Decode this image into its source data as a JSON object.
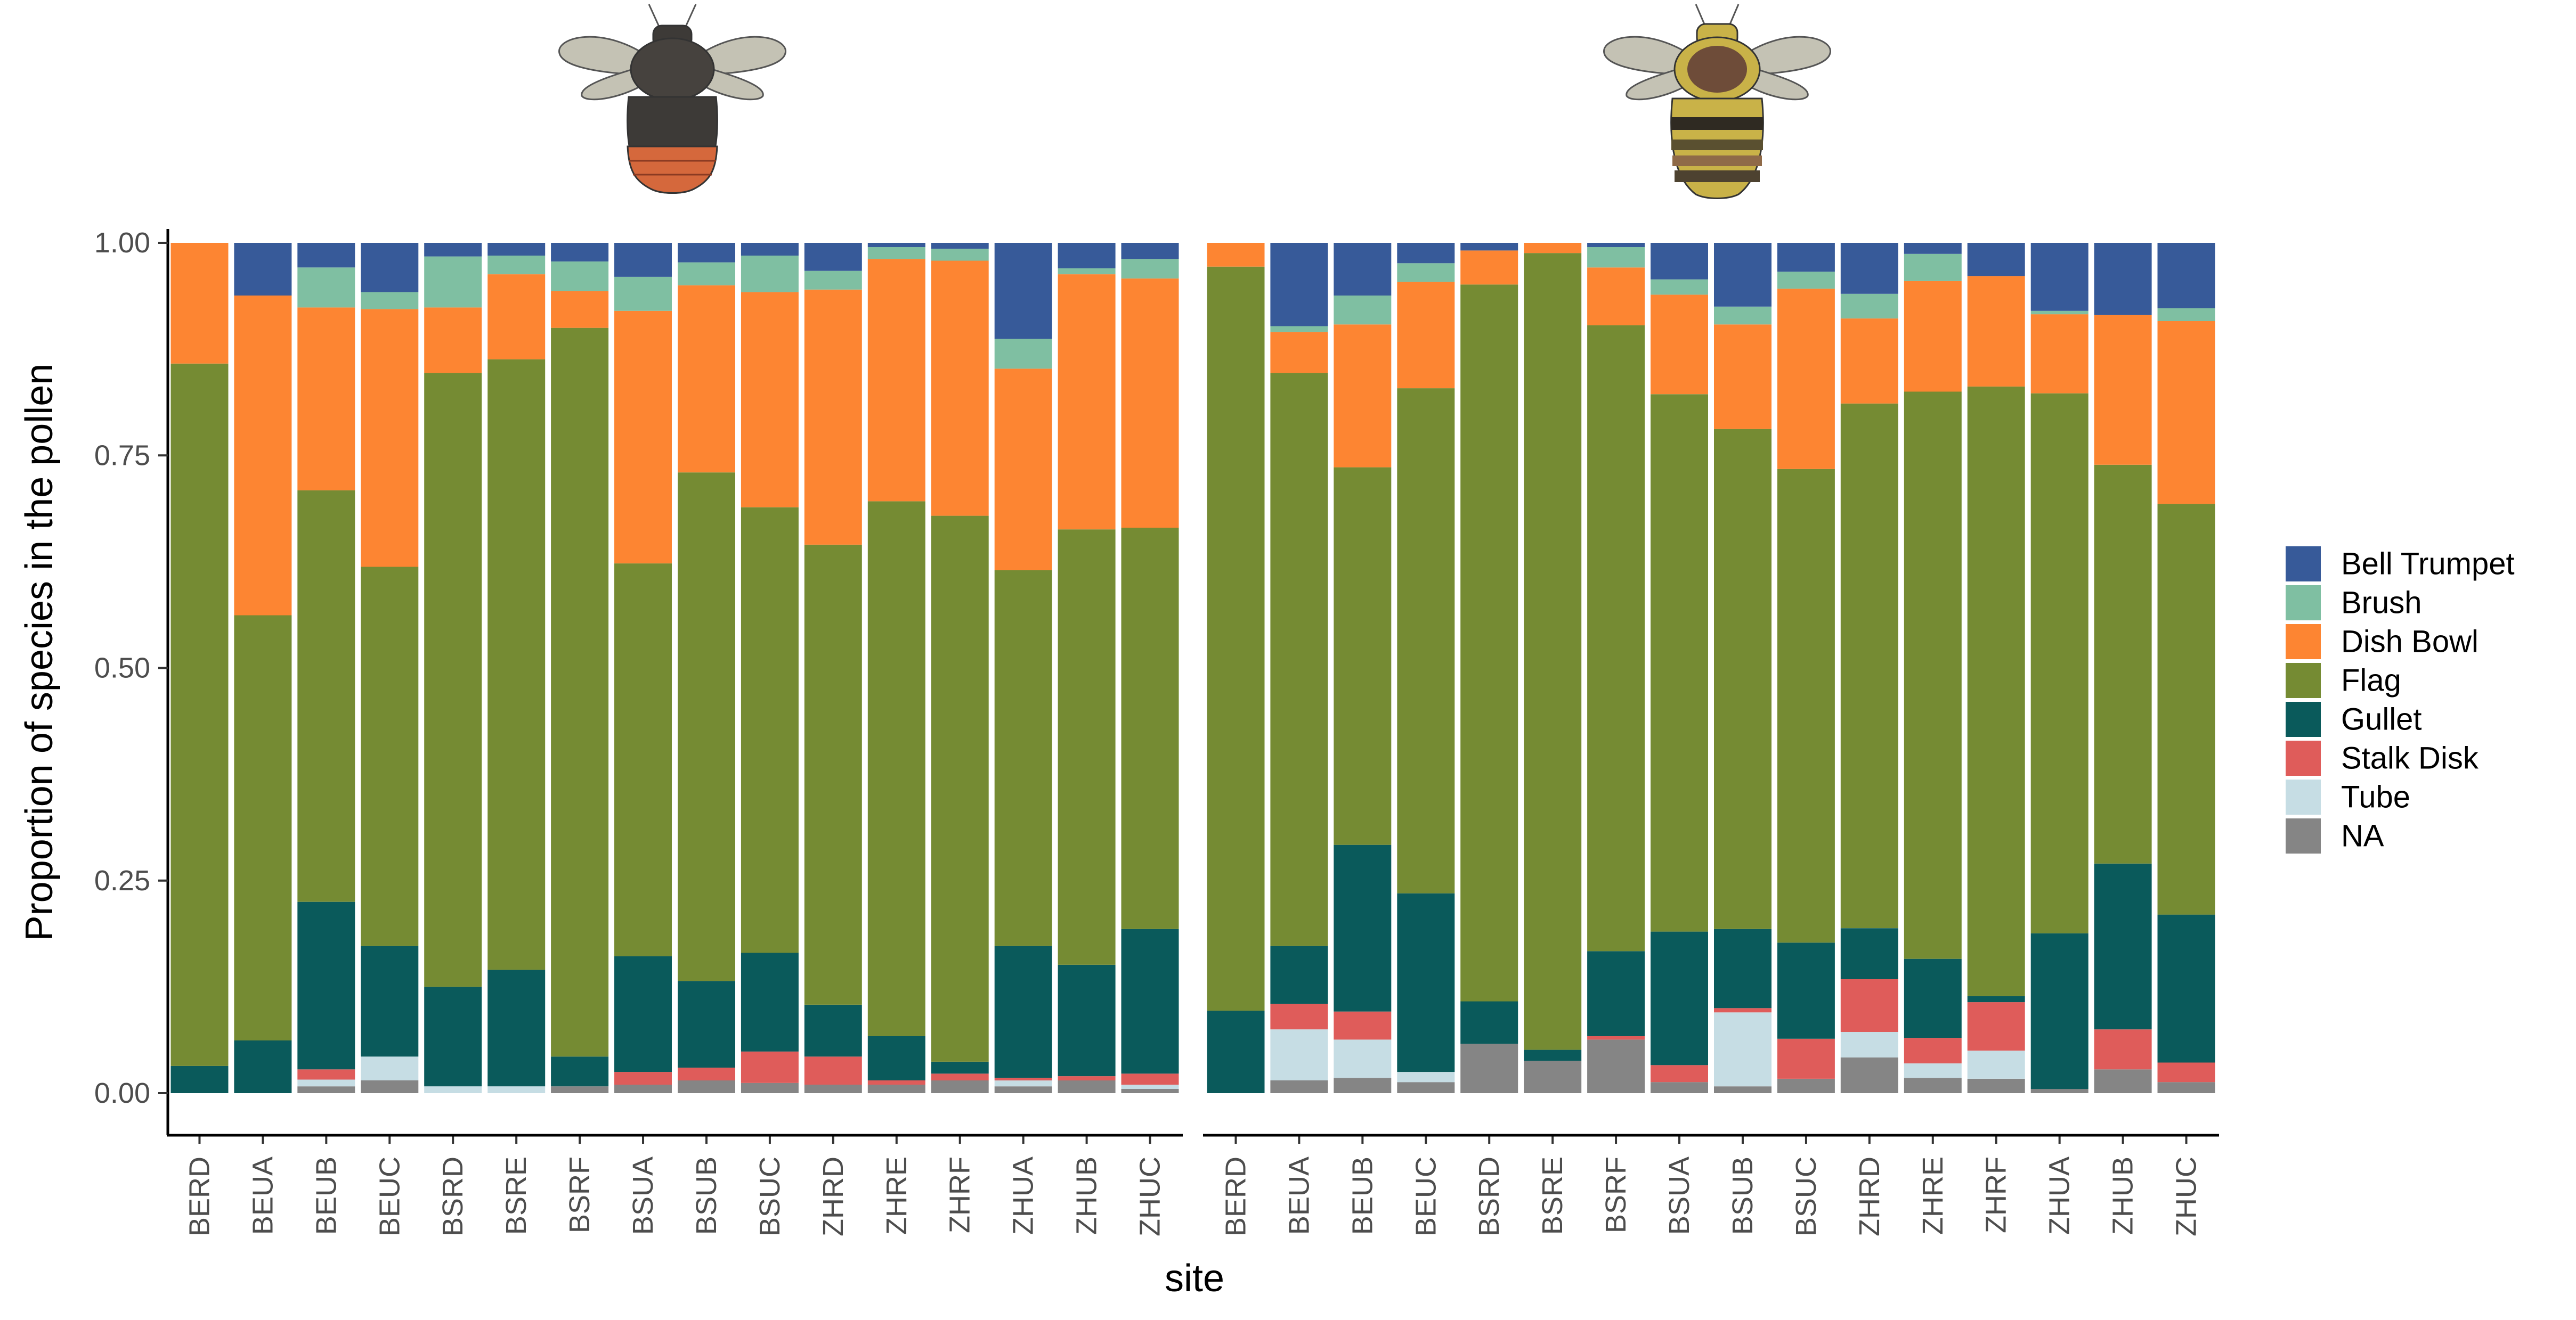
{
  "chart_data": {
    "type": "bar",
    "stacked": true,
    "xlabel": "site",
    "ylabel": "Proportion of species in the pollen",
    "ylim": [
      0,
      1
    ],
    "yticks": [
      "0.00",
      "0.25",
      "0.50",
      "0.75",
      "1.00"
    ],
    "grid": false,
    "legend_position": "right",
    "categories": [
      "BERD",
      "BEUA",
      "BEUB",
      "BEUC",
      "BSRD",
      "BSRE",
      "BSRF",
      "BSUA",
      "BSUB",
      "BSUC",
      "ZHRD",
      "ZHRE",
      "ZHRF",
      "ZHUA",
      "ZHUB",
      "ZHUC"
    ],
    "stack_order": [
      "Bell Trumpet",
      "Brush",
      "Dish Bowl",
      "Flag",
      "Gullet",
      "Stalk Disk",
      "Tube",
      "NA"
    ],
    "colors": {
      "Bell Trumpet": "#375a99",
      "Brush": "#7fbfa2",
      "Dish Bowl": "#fd8532",
      "Flag": "#758b33",
      "Gullet": "#0a5a5b",
      "Stalk Disk": "#df5c5a",
      "Tube": "#c6dde4",
      "NA": "#858585"
    },
    "panels": [
      {
        "icon": "dark-bumblebee-icon",
        "series": [
          {
            "name": "NA",
            "values": [
              0,
              0,
              0.008,
              0.015,
              0,
              0,
              0.008,
              0.01,
              0.015,
              0.012,
              0.01,
              0.01,
              0.015,
              0.008,
              0.015,
              0.005
            ]
          },
          {
            "name": "Tube",
            "values": [
              0,
              0,
              0.008,
              0.028,
              0.008,
              0.008,
              0,
              0,
              0,
              0,
              0,
              0,
              0,
              0.007,
              0,
              0.005
            ]
          },
          {
            "name": "Stalk Disk",
            "values": [
              0,
              0,
              0.012,
              0,
              0,
              0,
              0,
              0.015,
              0.015,
              0.037,
              0.033,
              0.005,
              0.008,
              0.003,
              0.005,
              0.013
            ]
          },
          {
            "name": "Gullet",
            "values": [
              0.032,
              0.062,
              0.197,
              0.13,
              0.117,
              0.137,
              0.035,
              0.136,
              0.102,
              0.116,
              0.061,
              0.052,
              0.014,
              0.155,
              0.131,
              0.17
            ]
          },
          {
            "name": "Flag",
            "values": [
              0.826,
              0.5,
              0.484,
              0.446,
              0.722,
              0.718,
              0.857,
              0.462,
              0.598,
              0.524,
              0.541,
              0.629,
              0.642,
              0.442,
              0.512,
              0.472
            ]
          },
          {
            "name": "Dish Bowl",
            "values": [
              0.142,
              0.376,
              0.215,
              0.303,
              0.077,
              0.1,
              0.043,
              0.297,
              0.22,
              0.253,
              0.3,
              0.285,
              0.3,
              0.237,
              0.3,
              0.293
            ]
          },
          {
            "name": "Brush",
            "values": [
              0,
              0,
              0.047,
              0.02,
              0.06,
              0.022,
              0.035,
              0.04,
              0.027,
              0.043,
              0.022,
              0.014,
              0.014,
              0.035,
              0.007,
              0.023
            ]
          },
          {
            "name": "Bell Trumpet",
            "values": [
              0,
              0.062,
              0.029,
              0.058,
              0.016,
              0.015,
              0.022,
              0.04,
              0.023,
              0.015,
              0.033,
              0.005,
              0.007,
              0.113,
              0.03,
              0.019
            ]
          }
        ]
      },
      {
        "icon": "striped-bumblebee-icon",
        "series": [
          {
            "name": "NA",
            "values": [
              0,
              0.015,
              0.018,
              0.013,
              0.058,
              0.038,
              0.063,
              0.013,
              0.008,
              0.017,
              0.042,
              0.018,
              0.017,
              0.005,
              0.028,
              0.013
            ]
          },
          {
            "name": "Tube",
            "values": [
              0,
              0.06,
              0.045,
              0.012,
              0,
              0,
              0,
              0,
              0.087,
              0,
              0.03,
              0.017,
              0.033,
              0,
              0,
              0
            ]
          },
          {
            "name": "Stalk Disk",
            "values": [
              0,
              0.03,
              0.033,
              0,
              0,
              0,
              0.004,
              0.02,
              0.005,
              0.047,
              0.062,
              0.03,
              0.057,
              0,
              0.047,
              0.023
            ]
          },
          {
            "name": "Gullet",
            "values": [
              0.097,
              0.068,
              0.196,
              0.21,
              0.05,
              0.013,
              0.1,
              0.157,
              0.093,
              0.113,
              0.06,
              0.093,
              0.007,
              0.183,
              0.195,
              0.174
            ]
          },
          {
            "name": "Flag",
            "values": [
              0.875,
              0.674,
              0.444,
              0.594,
              0.843,
              0.937,
              0.736,
              0.632,
              0.588,
              0.557,
              0.617,
              0.667,
              0.717,
              0.635,
              0.469,
              0.483
            ]
          },
          {
            "name": "Dish Bowl",
            "values": [
              0.028,
              0.048,
              0.168,
              0.125,
              0.04,
              0.012,
              0.068,
              0.117,
              0.123,
              0.212,
              0.1,
              0.13,
              0.13,
              0.093,
              0.176,
              0.215
            ]
          },
          {
            "name": "Brush",
            "values": [
              0,
              0.007,
              0.034,
              0.022,
              0,
              0,
              0.024,
              0.018,
              0.021,
              0.02,
              0.029,
              0.032,
              0,
              0.004,
              0,
              0.015
            ]
          },
          {
            "name": "Bell Trumpet",
            "values": [
              0,
              0.098,
              0.062,
              0.024,
              0.009,
              0,
              0.005,
              0.043,
              0.075,
              0.034,
              0.06,
              0.013,
              0.039,
              0.08,
              0.085,
              0.077
            ]
          }
        ]
      }
    ],
    "legend": [
      "Bell Trumpet",
      "Brush",
      "Dish Bowl",
      "Flag",
      "Gullet",
      "Stalk Disk",
      "Tube",
      "NA"
    ]
  }
}
